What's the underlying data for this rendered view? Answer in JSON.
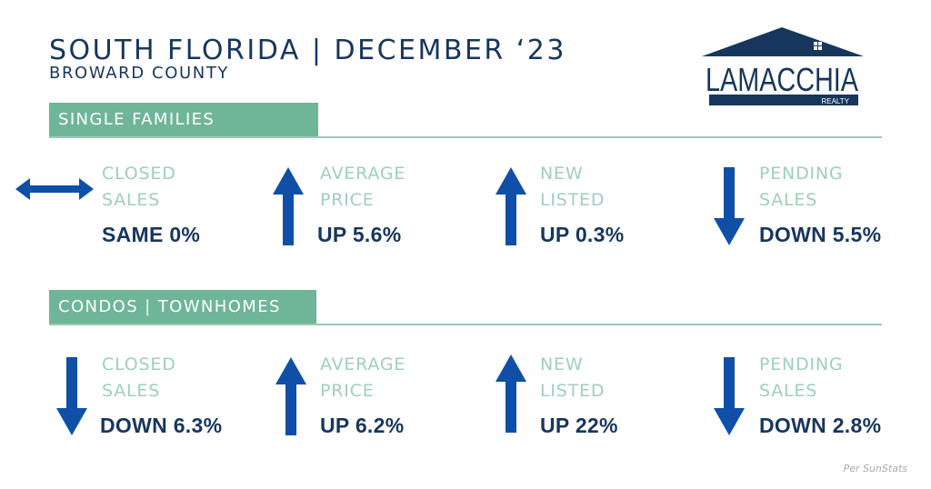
{
  "header": {
    "title": "SOUTH FLORIDA | DECEMBER ‘23",
    "subtitle": "BROWARD COUNTY"
  },
  "logo": {
    "name": "LAMACCHIA",
    "tagline": "REALTY",
    "color": "#17365d"
  },
  "colors": {
    "navy": "#17365d",
    "arrow_blue": "#0f4fa8",
    "band_green": "#6fb597",
    "label_green": "#9fcfbb"
  },
  "sections": [
    {
      "heading": "SINGLE FAMILIES",
      "stats": [
        {
          "label_line1": "CLOSED",
          "label_line2": "SALES",
          "value": "SAME 0%",
          "direction": "flat"
        },
        {
          "label_line1": "AVERAGE",
          "label_line2": "PRICE",
          "value": "UP 5.6%",
          "direction": "up"
        },
        {
          "label_line1": "NEW",
          "label_line2": "LISTED",
          "value": "UP 0.3%",
          "direction": "up"
        },
        {
          "label_line1": "PENDING",
          "label_line2": "SALES",
          "value": "DOWN 5.5%",
          "direction": "down"
        }
      ]
    },
    {
      "heading": "CONDOS | TOWNHOMES",
      "stats": [
        {
          "label_line1": "CLOSED",
          "label_line2": "SALES",
          "value": "DOWN 6.3%",
          "direction": "down"
        },
        {
          "label_line1": "AVERAGE",
          "label_line2": "PRICE",
          "value": "UP 6.2%",
          "direction": "up"
        },
        {
          "label_line1": "NEW",
          "label_line2": "LISTED",
          "value": "UP 22%",
          "direction": "up"
        },
        {
          "label_line1": "PENDING",
          "label_line2": "SALES",
          "value": "DOWN 2.8%",
          "direction": "down"
        }
      ]
    }
  ],
  "footnote": "Per SunStats"
}
